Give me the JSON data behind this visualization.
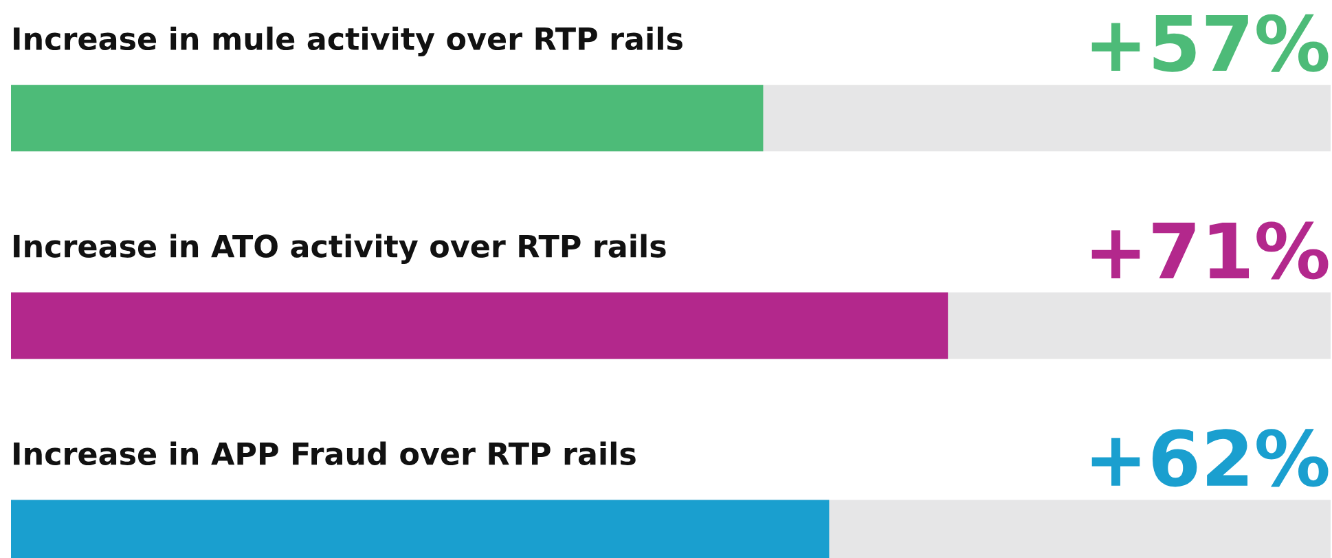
{
  "chart_data": {
    "type": "bar",
    "orientation": "horizontal",
    "categories": [
      "Increase in mule activity over RTP rails",
      "Increase in ATO activity over RTP rails",
      "Increase in APP Fraud over RTP rails"
    ],
    "values": [
      57,
      71,
      62
    ],
    "value_labels": [
      "+57%",
      "+71%",
      "+62%"
    ],
    "colors": [
      "#4dbb78",
      "#b3288c",
      "#1a9fcf"
    ],
    "xlim": [
      0,
      100
    ]
  }
}
